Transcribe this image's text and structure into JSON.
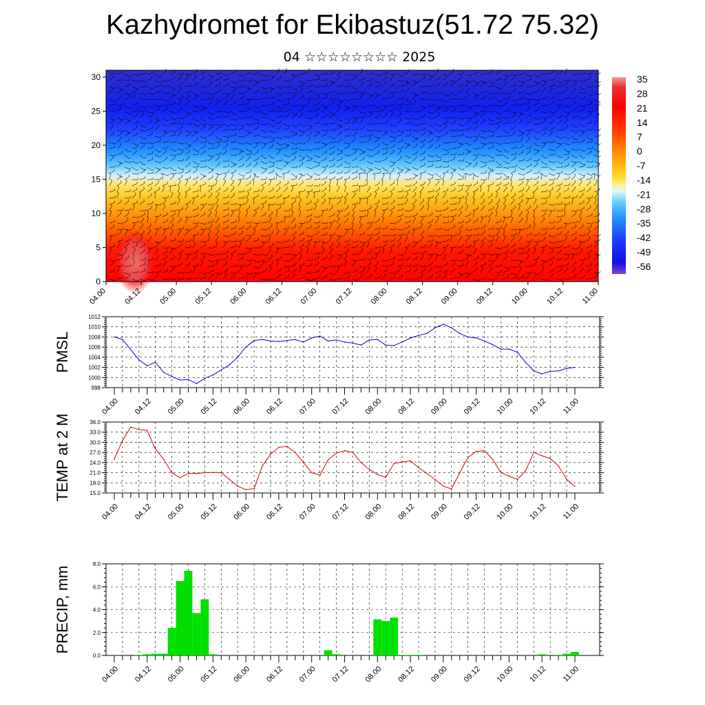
{
  "header": {
    "title": "Kazhydromet for Ekibastuz(51.72 75.32)",
    "subtitle": "04 ☆☆☆☆☆☆☆☆ 2025"
  },
  "chart_data": [
    {
      "type": "heatmap",
      "name": "temperature-section",
      "x_ticks": [
        "04.00",
        "04.12",
        "05.00",
        "05.12",
        "06.00",
        "06.12",
        "07.00",
        "07.12",
        "08.00",
        "08.12",
        "09.00",
        "09.12",
        "10.00",
        "10.12",
        "11.00"
      ],
      "y_ticks": [
        0,
        5,
        10,
        15,
        20,
        25,
        30
      ],
      "ylim": [
        0,
        31
      ],
      "colorbar_labels": [
        "35",
        "28",
        "21",
        "14",
        "7",
        "0",
        "-7",
        "-14",
        "-21",
        "-28",
        "-35",
        "-42",
        "-49",
        "-56"
      ],
      "colorbar_range": [
        -63,
        42
      ],
      "overlay": "wind barbs",
      "colors": {
        "warm": "#e80000",
        "mid": "#ffe040",
        "cold": "#1010e0"
      }
    },
    {
      "type": "line",
      "ylabel": "PMSL",
      "x_ticks": [
        "04.00",
        "04.12",
        "05.00",
        "05.12",
        "06.00",
        "06.12",
        "07.00",
        "07.12",
        "08.00",
        "08.12",
        "09.00",
        "09.12",
        "10.00",
        "10.12",
        "11.00"
      ],
      "y_ticks": [
        "998",
        "1000",
        "1002",
        "1004",
        "1006",
        "1008",
        "1010",
        "1012"
      ],
      "ylim": [
        998,
        1012
      ],
      "color": "#0000dd",
      "grid": true,
      "x": [
        0,
        3,
        6,
        9,
        12,
        15,
        18,
        21,
        24,
        27,
        30,
        33,
        36,
        39,
        42,
        45,
        48,
        51,
        54,
        57,
        60,
        63,
        66,
        69,
        72,
        75,
        78,
        81,
        84,
        87,
        90,
        93,
        96,
        99,
        102,
        105,
        108,
        111,
        114,
        117,
        120,
        123,
        126,
        129,
        132,
        135,
        138,
        141,
        144,
        147,
        150,
        153,
        156,
        159,
        162,
        165,
        168
      ],
      "values": [
        1008.0,
        1007.5,
        1005.5,
        1003.5,
        1002.3,
        1003.0,
        1001.0,
        1000.2,
        999.5,
        999.6,
        998.8,
        999.8,
        1000.5,
        1001.5,
        1002.5,
        1004.0,
        1006.0,
        1007.3,
        1007.5,
        1007.2,
        1007.1,
        1007.3,
        1007.5,
        1007.0,
        1007.8,
        1008.2,
        1007.2,
        1007.4,
        1007.0,
        1006.8,
        1006.4,
        1007.4,
        1007.5,
        1006.4,
        1006.3,
        1007.0,
        1007.8,
        1008.3,
        1008.7,
        1009.8,
        1010.5,
        1009.8,
        1008.7,
        1008.0,
        1007.8,
        1007.2,
        1006.5,
        1005.6,
        1005.6,
        1005.0,
        1003.0,
        1001.3,
        1000.7,
        1001.2,
        1001.3,
        1001.8,
        1002.0
      ]
    },
    {
      "type": "line",
      "ylabel": "TEMP at 2 M",
      "x_ticks": [
        "04.00",
        "04.12",
        "05.00",
        "05.12",
        "06.00",
        "06.12",
        "07.00",
        "07.12",
        "08.00",
        "08.12",
        "09.00",
        "09.12",
        "10.00",
        "10.12",
        "11.00"
      ],
      "y_ticks": [
        "15.0",
        "18.0",
        "21.0",
        "24.0",
        "27.0",
        "30.0",
        "33.0",
        "36.0"
      ],
      "ylim": [
        15,
        36
      ],
      "color": "#dd0000",
      "grid": true,
      "x": [
        0,
        3,
        6,
        9,
        12,
        15,
        18,
        21,
        24,
        27,
        30,
        33,
        36,
        39,
        42,
        45,
        48,
        51,
        54,
        57,
        60,
        63,
        66,
        69,
        72,
        75,
        78,
        81,
        84,
        87,
        90,
        93,
        96,
        99,
        102,
        105,
        108,
        111,
        114,
        117,
        120,
        123,
        126,
        129,
        132,
        135,
        138,
        141,
        144,
        147,
        150,
        153,
        156,
        159,
        162,
        165,
        168
      ],
      "values": [
        25.0,
        30.5,
        34.5,
        33.8,
        33.5,
        28.0,
        25.0,
        21.0,
        19.5,
        20.8,
        20.8,
        21.0,
        21.1,
        21.0,
        19.0,
        17.0,
        16.0,
        16.3,
        23.0,
        26.5,
        28.5,
        28.8,
        27.0,
        24.0,
        21.0,
        20.3,
        24.8,
        26.8,
        27.5,
        27.0,
        24.0,
        22.0,
        20.5,
        19.6,
        23.7,
        24.2,
        24.5,
        22.5,
        20.8,
        19.0,
        17.0,
        16.2,
        21.0,
        25.5,
        27.3,
        27.5,
        25.0,
        21.0,
        20.0,
        19.0,
        21.5,
        27.0,
        26.0,
        25.2,
        23.0,
        19.0,
        17.0
      ]
    },
    {
      "type": "bar",
      "ylabel": "PRECIP, mm",
      "x_ticks": [
        "04.00",
        "04.12",
        "05.00",
        "05.12",
        "06.00",
        "06.12",
        "07.00",
        "07.12",
        "08.00",
        "08.12",
        "09.00",
        "09.12",
        "10.00",
        "10.12",
        "11.00"
      ],
      "y_ticks": [
        "0.0",
        "2.0",
        "4.0",
        "6.0",
        "8.0"
      ],
      "ylim": [
        0,
        8
      ],
      "color": "#00e000",
      "grid": true,
      "x": [
        9,
        12,
        15,
        18,
        21,
        24,
        27,
        30,
        33,
        36,
        78,
        81,
        96,
        99,
        102,
        105,
        108,
        111,
        156,
        162,
        165,
        168
      ],
      "values": [
        0.05,
        0.1,
        0.15,
        0.15,
        2.4,
        6.5,
        7.4,
        3.7,
        4.9,
        0.1,
        0.45,
        0.1,
        3.15,
        3.0,
        3.3,
        0.05,
        0.05,
        0.05,
        0.1,
        0.05,
        0.15,
        0.3
      ]
    }
  ]
}
